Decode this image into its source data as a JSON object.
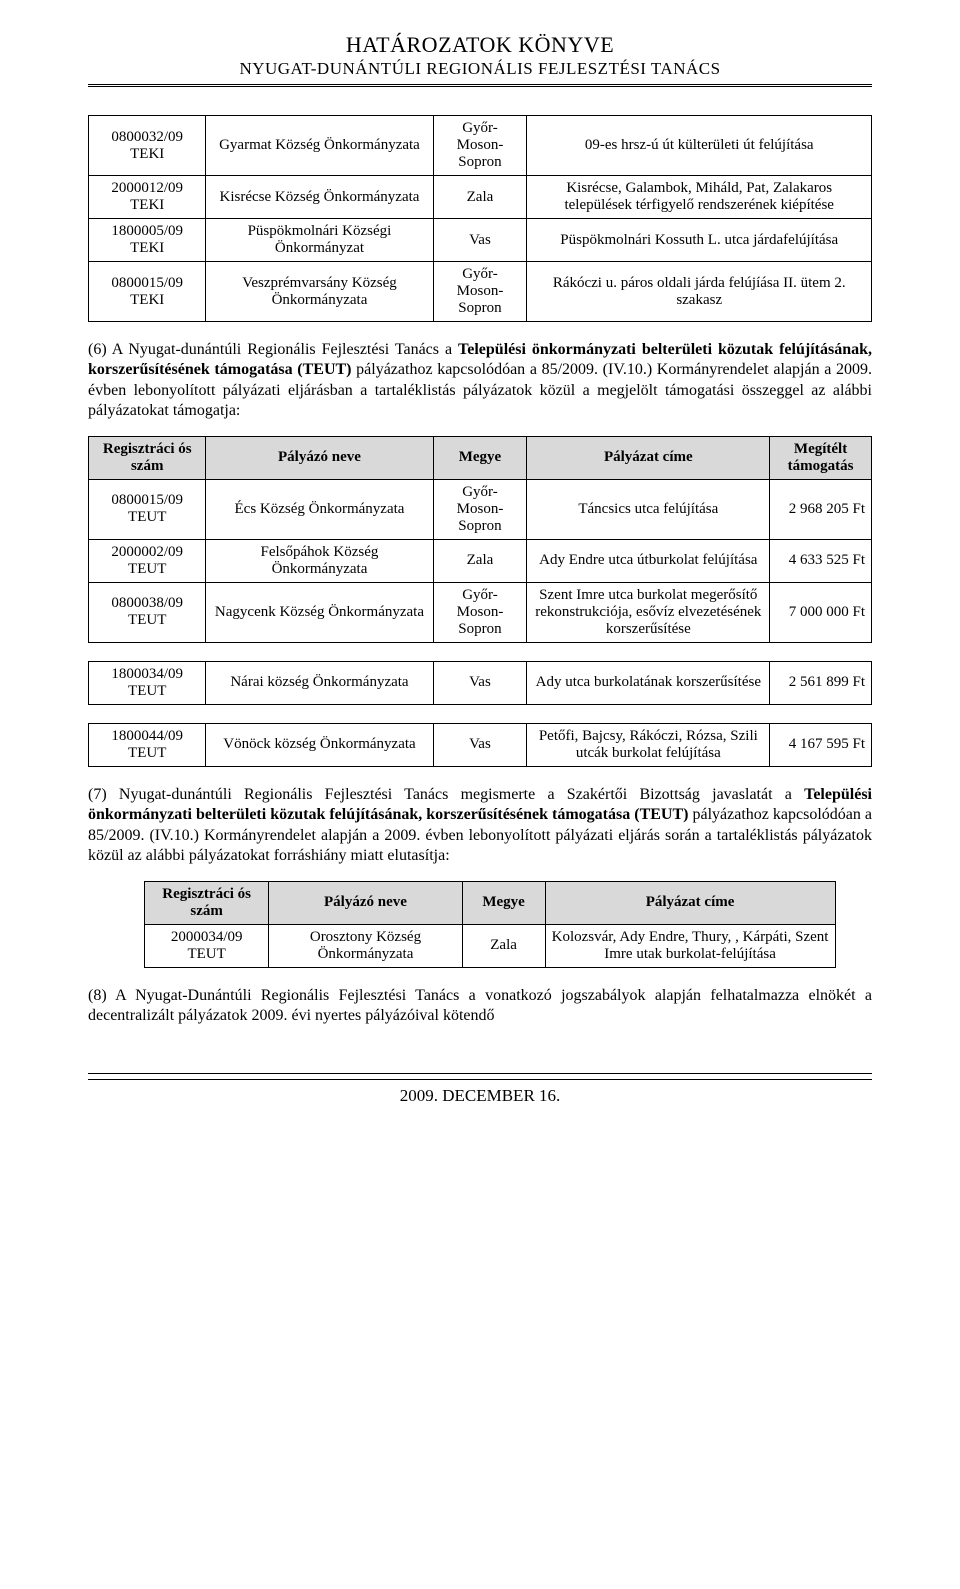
{
  "header": {
    "title": "HATÁROZATOK KÖNYVE",
    "sub": "NYUGAT-DUNÁNTÚLI REGIONÁLIS FEJLESZTÉSI TANÁCS"
  },
  "columns": {
    "reg": "Regisztráci ós szám",
    "name": "Pályázó neve",
    "county": "Megye",
    "title": "Pályázat címe",
    "amount": "Megítélt támogatás"
  },
  "table1": {
    "rows": [
      {
        "reg": "0800032/09 TEKI",
        "name": "Gyarmat Község Önkormányzata",
        "county": "Győr-\nMoson-\nSopron",
        "title": "09-es hrsz-ú út külterületi út felújítása"
      },
      {
        "reg": "2000012/09 TEKI",
        "name": "Kisrécse Község Önkormányzata",
        "county": "Zala",
        "title": "Kisrécse, Galambok, Miháld, Pat, Zalakaros települések térfigyelő rendszerének kiépítése"
      },
      {
        "reg": "1800005/09 TEKI",
        "name": "Püspökmolnári Községi Önkormányzat",
        "county": "Vas",
        "title": "Püspökmolnári Kossuth L. utca járdafelújítása"
      },
      {
        "reg": "0800015/09 TEKI",
        "name": "Veszprémvarsány Község Önkormányzata",
        "county": "Győr-\nMoson-\nSopron",
        "title": "Rákóczi u. páros oldali járda felújíása II. ütem 2. szakasz"
      }
    ]
  },
  "para6": {
    "prefix": "(6) A Nyugat-dunántúli Regionális Fejlesztési Tanács a ",
    "bold1": "Települési önkormányzati belterületi közutak felújításának, korszerűsítésének támogatása (TEUT)",
    "rest": " pályázathoz kapcsolódóan a 85/2009. (IV.10.) Kormányrendelet alapján a 2009. évben lebonyolított pályázati eljárásban a tartaléklistás pályázatok közül a megjelölt támogatási összeggel az alábbi pályázatokat támogatja:"
  },
  "table2": {
    "rows": [
      {
        "reg": "0800015/09 TEUT",
        "name": "Écs Község Önkormányzata",
        "county": "Győr-\nMoson-\nSopron",
        "title": "Táncsics utca felújítása",
        "amount": "2 968 205 Ft"
      },
      {
        "reg": "2000002/09 TEUT",
        "name": "Felsőpáhok Község Önkormányzata",
        "county": "Zala",
        "title": "Ady Endre utca útburkolat felújítása",
        "amount": "4 633 525 Ft"
      },
      {
        "reg": "0800038/09 TEUT",
        "name": "Nagycenk Község Önkormányzata",
        "county": "Győr-\nMoson-\nSopron",
        "title": "Szent Imre utca burkolat megerősítő rekonstrukciója, esővíz elvezetésének korszerűsítése",
        "amount": "7 000 000 Ft"
      }
    ]
  },
  "table3": {
    "rows": [
      {
        "reg": "1800034/09 TEUT",
        "name": "Nárai község Önkormányzata",
        "county": "Vas",
        "title": "Ady utca burkolatának korszerűsítése",
        "amount": "2 561 899 Ft"
      }
    ]
  },
  "table4": {
    "rows": [
      {
        "reg": "1800044/09 TEUT",
        "name": "Vönöck község Önkormányzata",
        "county": "Vas",
        "title": "Petőfi, Bajcsy, Rákóczi, Rózsa, Szili utcák burkolat felújítása",
        "amount": "4 167 595 Ft"
      }
    ]
  },
  "para7": {
    "prefix": "(7) Nyugat-dunántúli Regionális Fejlesztési Tanács megismerte a Szakértői Bizottság javaslatát a ",
    "bold1": "Települési önkormányzati belterületi közutak felújításának, korszerűsítésének támogatása (TEUT)",
    "rest": " pályázathoz kapcsolódóan a 85/2009. (IV.10.) Kormányrendelet alapján a 2009. évben lebonyolított pályázati eljárás során a tartaléklistás pályázatok közül az alábbi pályázatokat forráshiány miatt elutasítja:"
  },
  "table5": {
    "rows": [
      {
        "reg": "2000034/09 TEUT",
        "name": "Orosztony Község Önkormányzata",
        "county": "Zala",
        "title": "Kolozsvár, Ady Endre, Thury, , Kárpáti, Szent Imre utak burkolat-felújítása"
      }
    ]
  },
  "para8": {
    "text": "(8) A Nyugat-Dunántúli Regionális Fejlesztési Tanács a vonatkozó jogszabályok alapján felhatalmazza elnökét a decentralizált pályázatok 2009. évi nyertes pályázóival kötendő"
  },
  "footer": "2009. DECEMBER 16."
}
